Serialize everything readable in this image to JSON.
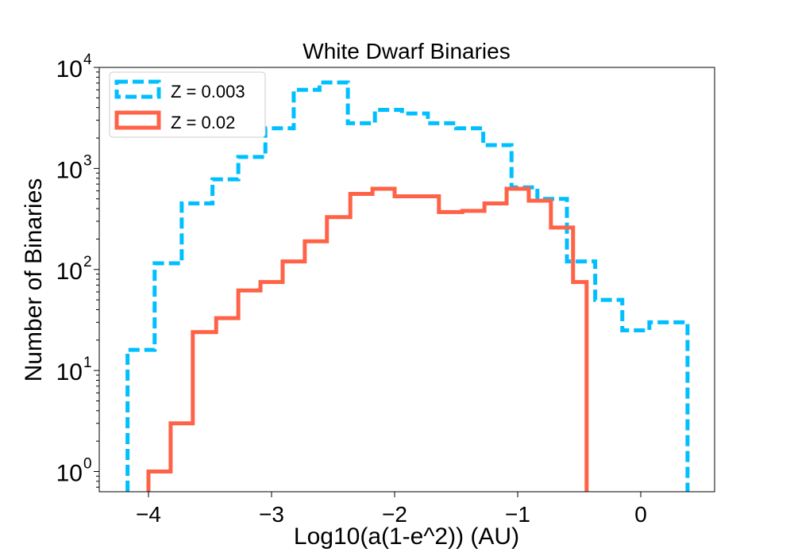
{
  "chart_data": {
    "type": "histogram",
    "title": "White Dwarf Binaries",
    "xlabel": "Log10(a(1-e^2)) (AU)",
    "ylabel": "Number of Binaries",
    "xlim": [
      -4.4,
      0.6
    ],
    "ylim_log10": [
      -0.2,
      4.0
    ],
    "yscale": "log",
    "xticks": [
      -4,
      -3,
      -2,
      -1,
      0
    ],
    "xtick_labels": [
      "−4",
      "−3",
      "−2",
      "−1",
      "0"
    ],
    "yticks": [
      {
        "base": "10",
        "exp": "0",
        "log": 0
      },
      {
        "base": "10",
        "exp": "1",
        "log": 1
      },
      {
        "base": "10",
        "exp": "2",
        "log": 2
      },
      {
        "base": "10",
        "exp": "3",
        "log": 3
      },
      {
        "base": "10",
        "exp": "4",
        "log": 4
      }
    ],
    "legend_position": "top-left",
    "series": [
      {
        "name": "Z = 0.003",
        "color": "#00BFFF",
        "style": "dashed",
        "bin_edges": [
          -4.17,
          -3.95,
          -3.73,
          -3.48,
          -3.27,
          -3.05,
          -2.82,
          -2.61,
          -2.38,
          -2.16,
          -1.94,
          -1.73,
          -1.5,
          -1.28,
          -1.05,
          -0.84,
          -0.6,
          -0.37,
          -0.15,
          0.07,
          0.38
        ],
        "counts": [
          16,
          115,
          450,
          780,
          1300,
          2500,
          6000,
          7100,
          2800,
          3800,
          3500,
          2800,
          2500,
          1700,
          650,
          500,
          120,
          50,
          25,
          30
        ]
      },
      {
        "name": "Z = 0.02",
        "color": "#FF6347",
        "style": "solid",
        "bin_edges": [
          -4.0,
          -3.82,
          -3.64,
          -3.45,
          -3.27,
          -3.09,
          -2.91,
          -2.73,
          -2.55,
          -2.36,
          -2.18,
          -2.0,
          -1.64,
          -1.45,
          -1.27,
          -1.09,
          -0.91,
          -0.73,
          -0.55,
          -0.44
        ],
        "counts": [
          1,
          3,
          24,
          33,
          62,
          75,
          120,
          190,
          330,
          560,
          630,
          530,
          370,
          380,
          450,
          630,
          480,
          260,
          75
        ]
      }
    ]
  }
}
